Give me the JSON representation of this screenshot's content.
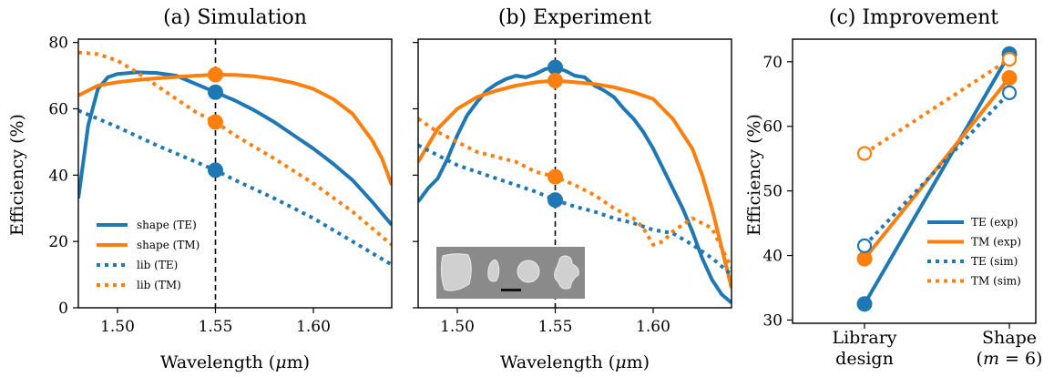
{
  "colors": {
    "te": "#1f77b4",
    "tm": "#ff7f0e"
  },
  "chart_data": [
    {
      "type": "line",
      "title": "(a) Simulation",
      "xlabel": "Wavelength (μm)",
      "ylabel": "Efficiency (%)",
      "xlim": [
        1.48,
        1.64
      ],
      "ylim": [
        0,
        81
      ],
      "xticks": [
        "1.50",
        "1.55",
        "1.60"
      ],
      "yticks": [
        "0",
        "20",
        "40",
        "60",
        "80"
      ],
      "marker_x": 1.55,
      "legend_position": "lower-left",
      "series": [
        {
          "name": "shape (TE)",
          "color_key": "te",
          "style": "solid",
          "x": [
            1.48,
            1.485,
            1.49,
            1.495,
            1.5,
            1.51,
            1.52,
            1.53,
            1.54,
            1.55,
            1.56,
            1.57,
            1.58,
            1.59,
            1.6,
            1.61,
            1.62,
            1.63,
            1.64
          ],
          "y": [
            33,
            55,
            66,
            69.5,
            70.5,
            71,
            70.8,
            70,
            67.5,
            65,
            62.5,
            59.5,
            56,
            52,
            48,
            43.5,
            38.5,
            32,
            25
          ]
        },
        {
          "name": "shape (TM)",
          "color_key": "tm",
          "style": "solid",
          "x": [
            1.48,
            1.49,
            1.5,
            1.51,
            1.52,
            1.53,
            1.54,
            1.55,
            1.56,
            1.57,
            1.58,
            1.59,
            1.6,
            1.61,
            1.62,
            1.63,
            1.635,
            1.64
          ],
          "y": [
            64,
            67,
            68,
            68.7,
            69.2,
            69.6,
            70,
            70.3,
            70.2,
            69.8,
            69,
            67.8,
            66,
            63,
            58.5,
            50.5,
            45,
            37
          ]
        },
        {
          "name": "lib (TE)",
          "color_key": "te",
          "style": "dotted",
          "x": [
            1.48,
            1.5,
            1.52,
            1.54,
            1.55,
            1.56,
            1.58,
            1.6,
            1.62,
            1.64
          ],
          "y": [
            59.5,
            54.5,
            49,
            44,
            41.5,
            38.5,
            33,
            27,
            20,
            13
          ]
        },
        {
          "name": "lib (TM)",
          "color_key": "tm",
          "style": "dotted",
          "x": [
            1.48,
            1.49,
            1.5,
            1.51,
            1.52,
            1.53,
            1.54,
            1.55,
            1.56,
            1.58,
            1.6,
            1.62,
            1.64
          ],
          "y": [
            77,
            76.5,
            74.5,
            71,
            67,
            63,
            59,
            56,
            52,
            45,
            37.5,
            29,
            19
          ]
        }
      ],
      "markers": [
        {
          "series": "shape (TM)",
          "x": 1.55,
          "y": 70.3,
          "color_key": "tm"
        },
        {
          "series": "shape (TE)",
          "x": 1.55,
          "y": 65,
          "color_key": "te"
        },
        {
          "series": "lib (TM)",
          "x": 1.55,
          "y": 56,
          "color_key": "tm"
        },
        {
          "series": "lib (TE)",
          "x": 1.55,
          "y": 41.5,
          "color_key": "te"
        }
      ]
    },
    {
      "type": "line",
      "title": "(b) Experiment",
      "xlabel": "Wavelength (μm)",
      "xlim": [
        1.48,
        1.64
      ],
      "ylim": [
        0,
        81
      ],
      "xticks": [
        "1.50",
        "1.55",
        "1.60"
      ],
      "marker_x": 1.55,
      "inset": "SEM images of shape-optimized pillars",
      "series": [
        {
          "color_key": "te",
          "style": "solid",
          "x": [
            1.48,
            1.485,
            1.49,
            1.495,
            1.5,
            1.505,
            1.51,
            1.515,
            1.52,
            1.525,
            1.53,
            1.535,
            1.54,
            1.545,
            1.55,
            1.555,
            1.56,
            1.565,
            1.57,
            1.575,
            1.58,
            1.585,
            1.59,
            1.595,
            1.6,
            1.605,
            1.61,
            1.615,
            1.62,
            1.625,
            1.63,
            1.635,
            1.64
          ],
          "y": [
            32,
            36,
            39,
            45,
            52,
            58,
            62,
            65.5,
            67.5,
            69,
            70,
            69.5,
            70.5,
            72,
            72.5,
            71.5,
            70,
            69.5,
            67,
            65.5,
            63.5,
            60,
            57,
            53,
            48,
            42,
            36,
            30,
            23,
            15,
            8.5,
            4,
            1.5
          ]
        },
        {
          "color_key": "tm",
          "style": "solid",
          "x": [
            1.48,
            1.49,
            1.5,
            1.51,
            1.52,
            1.53,
            1.54,
            1.55,
            1.56,
            1.57,
            1.58,
            1.59,
            1.6,
            1.61,
            1.62,
            1.625,
            1.63,
            1.635,
            1.64
          ],
          "y": [
            44,
            54,
            60,
            63.5,
            65.5,
            67,
            68,
            68.5,
            68,
            67.5,
            66.5,
            65,
            63,
            57,
            48,
            40,
            30,
            18,
            6
          ]
        },
        {
          "color_key": "te",
          "style": "dotted",
          "x": [
            1.48,
            1.49,
            1.5,
            1.51,
            1.52,
            1.53,
            1.54,
            1.55,
            1.56,
            1.57,
            1.58,
            1.59,
            1.6,
            1.61,
            1.62,
            1.63,
            1.64
          ],
          "y": [
            49,
            46,
            43,
            41,
            39,
            37,
            35,
            32.5,
            30.5,
            29,
            27,
            25.5,
            23.5,
            22.5,
            19,
            15,
            10
          ]
        },
        {
          "color_key": "tm",
          "style": "dotted",
          "x": [
            1.48,
            1.49,
            1.5,
            1.51,
            1.52,
            1.53,
            1.54,
            1.55,
            1.56,
            1.57,
            1.58,
            1.59,
            1.595,
            1.6,
            1.605,
            1.61,
            1.62,
            1.63,
            1.64
          ],
          "y": [
            57,
            53,
            50,
            47,
            45.5,
            44,
            41,
            39.5,
            37,
            34,
            30,
            27,
            24,
            19,
            20,
            23,
            27,
            24,
            12
          ]
        }
      ],
      "markers": [
        {
          "x": 1.55,
          "y": 72.5,
          "color_key": "te"
        },
        {
          "x": 1.55,
          "y": 68.5,
          "color_key": "tm"
        },
        {
          "x": 1.55,
          "y": 39.5,
          "color_key": "tm"
        },
        {
          "x": 1.55,
          "y": 32.5,
          "color_key": "te"
        }
      ]
    },
    {
      "type": "line",
      "title": "(c) Improvement",
      "ylabel": "Efficiency (%)",
      "categories": [
        "Library design",
        "Shape (m = 6)"
      ],
      "ylim": [
        29.5,
        73.5
      ],
      "yticks": [
        "30",
        "40",
        "50",
        "60",
        "70"
      ],
      "legend_position": "lower-right",
      "series": [
        {
          "name": "TE (exp)",
          "color_key": "te",
          "style": "solid",
          "marker": "filled",
          "values": [
            32.5,
            71.2
          ]
        },
        {
          "name": "TM (exp)",
          "color_key": "tm",
          "style": "solid",
          "marker": "filled",
          "values": [
            39.5,
            67.5
          ]
        },
        {
          "name": "TE (sim)",
          "color_key": "te",
          "style": "dotted",
          "marker": "open",
          "values": [
            41.5,
            65.2
          ]
        },
        {
          "name": "TM (sim)",
          "color_key": "tm",
          "style": "dotted",
          "marker": "open",
          "values": [
            55.8,
            70.4
          ]
        }
      ]
    }
  ]
}
